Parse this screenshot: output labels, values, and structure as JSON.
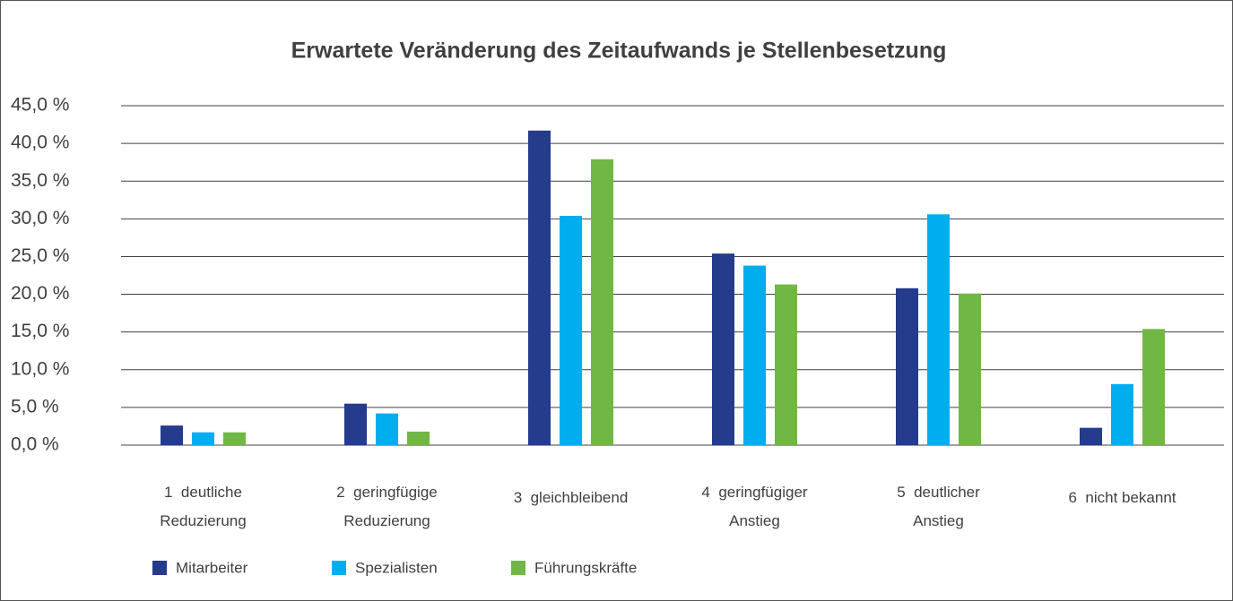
{
  "chart_data": {
    "type": "bar",
    "title": "Erwartete Veränderung des Zeitaufwands je Stellenbesetzung",
    "categories": [
      "1  deutliche\nReduzierung",
      "2  geringfügige\nReduzierung",
      "3  gleichbleibend",
      "4  geringfügiger\nAnstieg",
      "5  deutlicher\nAnstieg",
      "6  nicht bekannt"
    ],
    "series": [
      {
        "name": "Mitarbeiter",
        "color": "#253b8c",
        "values": [
          2.6,
          5.5,
          41.7,
          25.4,
          20.8,
          2.3
        ]
      },
      {
        "name": "Spezialisten",
        "color": "#00aeef",
        "values": [
          1.7,
          4.2,
          30.4,
          23.8,
          30.6,
          8.1
        ]
      },
      {
        "name": "Führungskräfte",
        "color": "#70b745",
        "values": [
          1.7,
          1.8,
          37.9,
          21.3,
          20.1,
          15.4
        ]
      }
    ],
    "ylim": [
      0,
      45
    ],
    "yticks": [
      {
        "value": 0,
        "label": "0,0 %"
      },
      {
        "value": 5,
        "label": "5,0 %"
      },
      {
        "value": 10,
        "label": "10,0 %"
      },
      {
        "value": 15,
        "label": "15,0 %"
      },
      {
        "value": 20,
        "label": "20,0 %"
      },
      {
        "value": 25,
        "label": "25,0 %"
      },
      {
        "value": 30,
        "label": "30,0 %"
      },
      {
        "value": 35,
        "label": "35,0 %"
      },
      {
        "value": 40,
        "label": "40,0 %"
      },
      {
        "value": 45,
        "label": "45,0 %"
      }
    ],
    "grid": true
  }
}
